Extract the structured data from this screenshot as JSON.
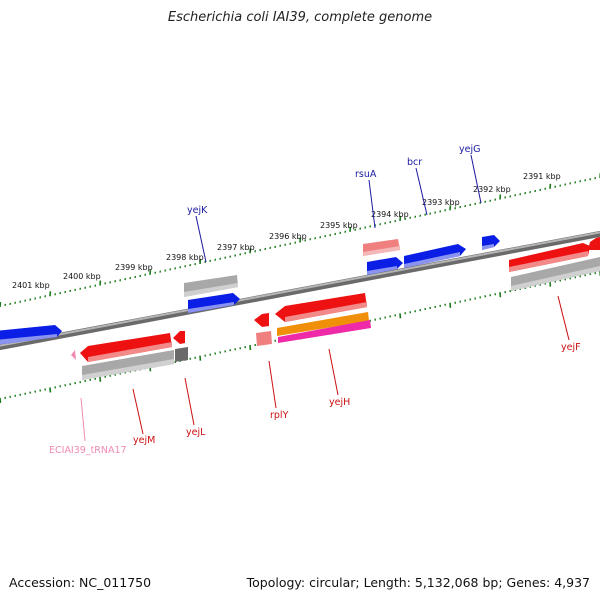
{
  "title": "Escherichia coli IAI39, complete genome",
  "footer": {
    "accession": "Accession: NC_011750",
    "summary": "Topology: circular; Length: 5,132,068 bp; Genes: 4,937"
  },
  "ruler_labels": [
    "2401 kbp",
    "2400 kbp",
    "2399 kbp",
    "2398 kbp",
    "2397 kbp",
    "2396 kbp",
    "2395 kbp",
    "2394 kbp",
    "2393 kbp",
    "2392 kbp",
    "2391 kbp"
  ],
  "gene_labels": {
    "yejK": "yejK",
    "rsuA": "rsuA",
    "bcr": "bcr",
    "yejG": "yejG",
    "trna": "ECIAI39_tRNA17",
    "yejM": "yejM",
    "yejL": "yejL",
    "rplY": "rplY",
    "yejH": "yejH",
    "yejF": "yejF"
  },
  "colors": {
    "backbone": "#8a8a8a",
    "ruler": "#1a7a1a",
    "blue": "#0a1ee6",
    "red": "#ee1111",
    "pink": "#f08080",
    "gray": "#a8a8a8",
    "orange": "#f0900a",
    "magenta": "#ee2aa8",
    "label_blue": "#1a1aa0",
    "label_red": "#cc1010",
    "label_pink": "#f08ab4"
  }
}
